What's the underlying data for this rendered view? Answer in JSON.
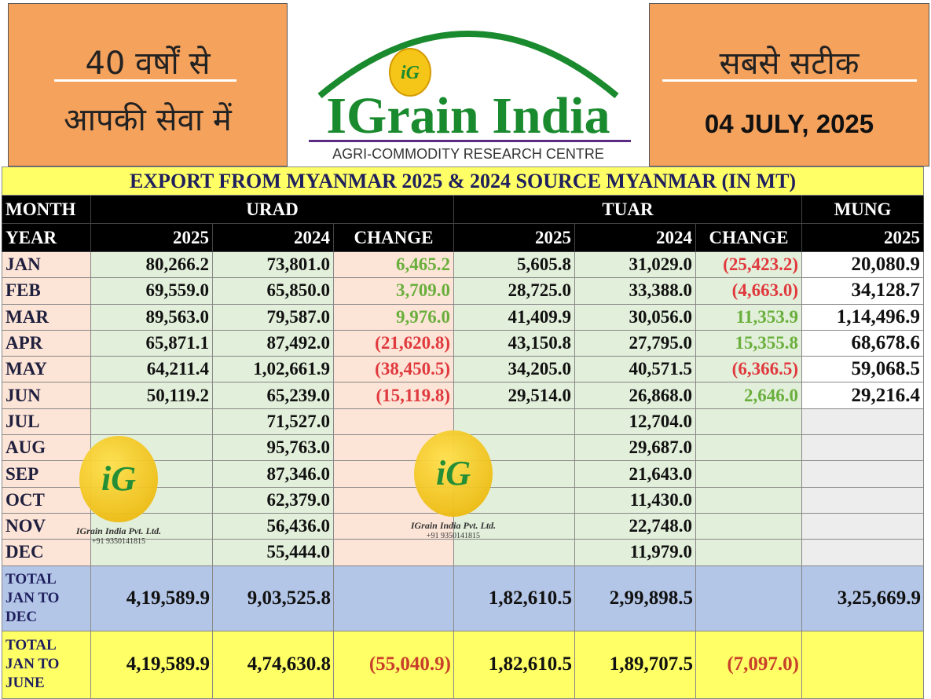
{
  "header": {
    "left_line1": "40 वर्षों से",
    "left_line2": "आपकी सेवा में",
    "logo_badge": "iG",
    "logo_text": "IGrain India",
    "logo_subtitle": "AGRI-COMMODITY RESEARCH CENTRE",
    "right_line1": "सबसे सटीक",
    "date": "04 JULY, 2025"
  },
  "table": {
    "title": "EXPORT FROM MYANMAR 2025 & 2024 SOURCE MYANMAR (IN MT)",
    "group_headers": [
      "MONTH",
      "URAD",
      "TUAR",
      "MUNG"
    ],
    "sub_headers": [
      "YEAR",
      "2025",
      "2024",
      "CHANGE",
      "2025",
      "2024",
      "CHANGE",
      "2025"
    ],
    "rows": [
      [
        "JAN",
        "80,266.2",
        "73,801.0",
        "6,465.2",
        "5,605.8",
        "31,029.0",
        "(25,423.2)",
        "20,080.9"
      ],
      [
        "FEB",
        "69,559.0",
        "65,850.0",
        "3,709.0",
        "28,725.0",
        "33,388.0",
        "(4,663.0)",
        "34,128.7"
      ],
      [
        "MAR",
        "89,563.0",
        "79,587.0",
        "9,976.0",
        "41,409.9",
        "30,056.0",
        "11,353.9",
        "1,14,496.9"
      ],
      [
        "APR",
        "65,871.1",
        "87,492.0",
        "(21,620.8)",
        "43,150.8",
        "27,795.0",
        "15,355.8",
        "68,678.6"
      ],
      [
        "MAY",
        "64,211.4",
        "1,02,661.9",
        "(38,450.5)",
        "34,205.0",
        "40,571.5",
        "(6,366.5)",
        "59,068.5"
      ],
      [
        "JUN",
        "50,119.2",
        "65,239.0",
        "(15,119.8)",
        "29,514.0",
        "26,868.0",
        "2,646.0",
        "29,216.4"
      ],
      [
        "JUL",
        null,
        "71,527.0",
        null,
        null,
        "12,704.0",
        null,
        null
      ],
      [
        "AUG",
        null,
        "95,763.0",
        null,
        null,
        "29,687.0",
        null,
        null
      ],
      [
        "SEP",
        null,
        "87,346.0",
        null,
        null,
        "21,643.0",
        null,
        null
      ],
      [
        "OCT",
        null,
        "62,379.0",
        null,
        null,
        "11,430.0",
        null,
        null
      ],
      [
        "NOV",
        null,
        "56,436.0",
        null,
        null,
        "22,748.0",
        null,
        null
      ],
      [
        "DEC",
        null,
        "55,444.0",
        null,
        null,
        "11,979.0",
        null,
        null
      ]
    ],
    "totals": [
      [
        "TOTAL\nJAN TO\nDEC",
        "4,19,589.9",
        "9,03,525.8",
        null,
        "1,82,610.5",
        "2,99,898.5",
        null,
        "3,25,669.9"
      ],
      [
        "TOTAL\nJAN TO\nJUNE",
        "4,19,589.9",
        "4,74,630.8",
        "(55,040.9)",
        "1,82,610.5",
        "1,89,707.5",
        "(7,097.0)",
        null
      ]
    ]
  },
  "watermarks": [
    {
      "badge": "iG",
      "name": "IGrain India Pvt. Ltd.",
      "phone": "+91 9350141815"
    },
    {
      "badge": "iG",
      "name": "IGrain India Pvt. Ltd.",
      "phone": "+91 9350141815"
    }
  ]
}
